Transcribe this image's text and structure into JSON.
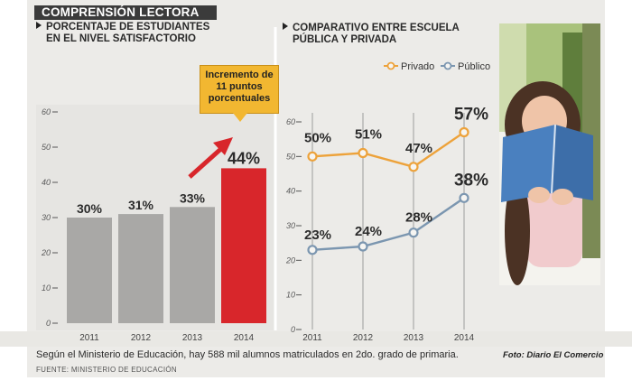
{
  "header": {
    "banner": "COMPRENSIÓN LECTORA"
  },
  "left_chart": {
    "subtitle_line1": "PORCENTAJE DE ESTUDIANTES",
    "subtitle_line2": "EN EL NIVEL SATISFACTORIO",
    "callout_lines": [
      "Incremento de",
      "11 puntos",
      "porcentuales"
    ]
  },
  "right_chart": {
    "subtitle_line1": "COMPARATIVO ENTRE ESCUELA",
    "subtitle_line2": "PÚBLICA Y PRIVADA"
  },
  "footer": {
    "note": "Según el Ministerio de Educación, hay 588 mil alumnos matriculados en 2do. grado de primaria.",
    "source": "FUENTE: MINISTERIO DE EDUCACIÓN",
    "photo_credit": "Foto: Diario El Comercio"
  },
  "colors": {
    "gray_bar": "#a9a8a6",
    "red_bar": "#d8262b",
    "privado": "#eda23a",
    "publico": "#7b96b0",
    "callout": "#f2b731"
  },
  "chart_data": [
    {
      "type": "bar",
      "categories": [
        "2011",
        "2012",
        "2013",
        "2014"
      ],
      "values": [
        30,
        31,
        33,
        44
      ],
      "value_labels": [
        "30%",
        "31%",
        "33%",
        "44%"
      ],
      "yticks": [
        "0",
        "10",
        "20",
        "30",
        "40",
        "50",
        "60"
      ],
      "ylim": [
        0,
        60
      ],
      "highlight": "2014"
    },
    {
      "type": "line",
      "categories": [
        "2011",
        "2012",
        "2013",
        "2014"
      ],
      "series": [
        {
          "name": "Privado",
          "values": [
            50,
            51,
            47,
            57
          ],
          "labels": [
            "50%",
            "51%",
            "47%",
            "57%"
          ]
        },
        {
          "name": "Público",
          "values": [
            23,
            24,
            28,
            38
          ],
          "labels": [
            "23%",
            "24%",
            "28%",
            "38%"
          ]
        }
      ],
      "yticks": [
        "0",
        "10",
        "20",
        "30",
        "40",
        "50",
        "60"
      ],
      "ylim": [
        0,
        60
      ],
      "legend": "top-right"
    }
  ]
}
